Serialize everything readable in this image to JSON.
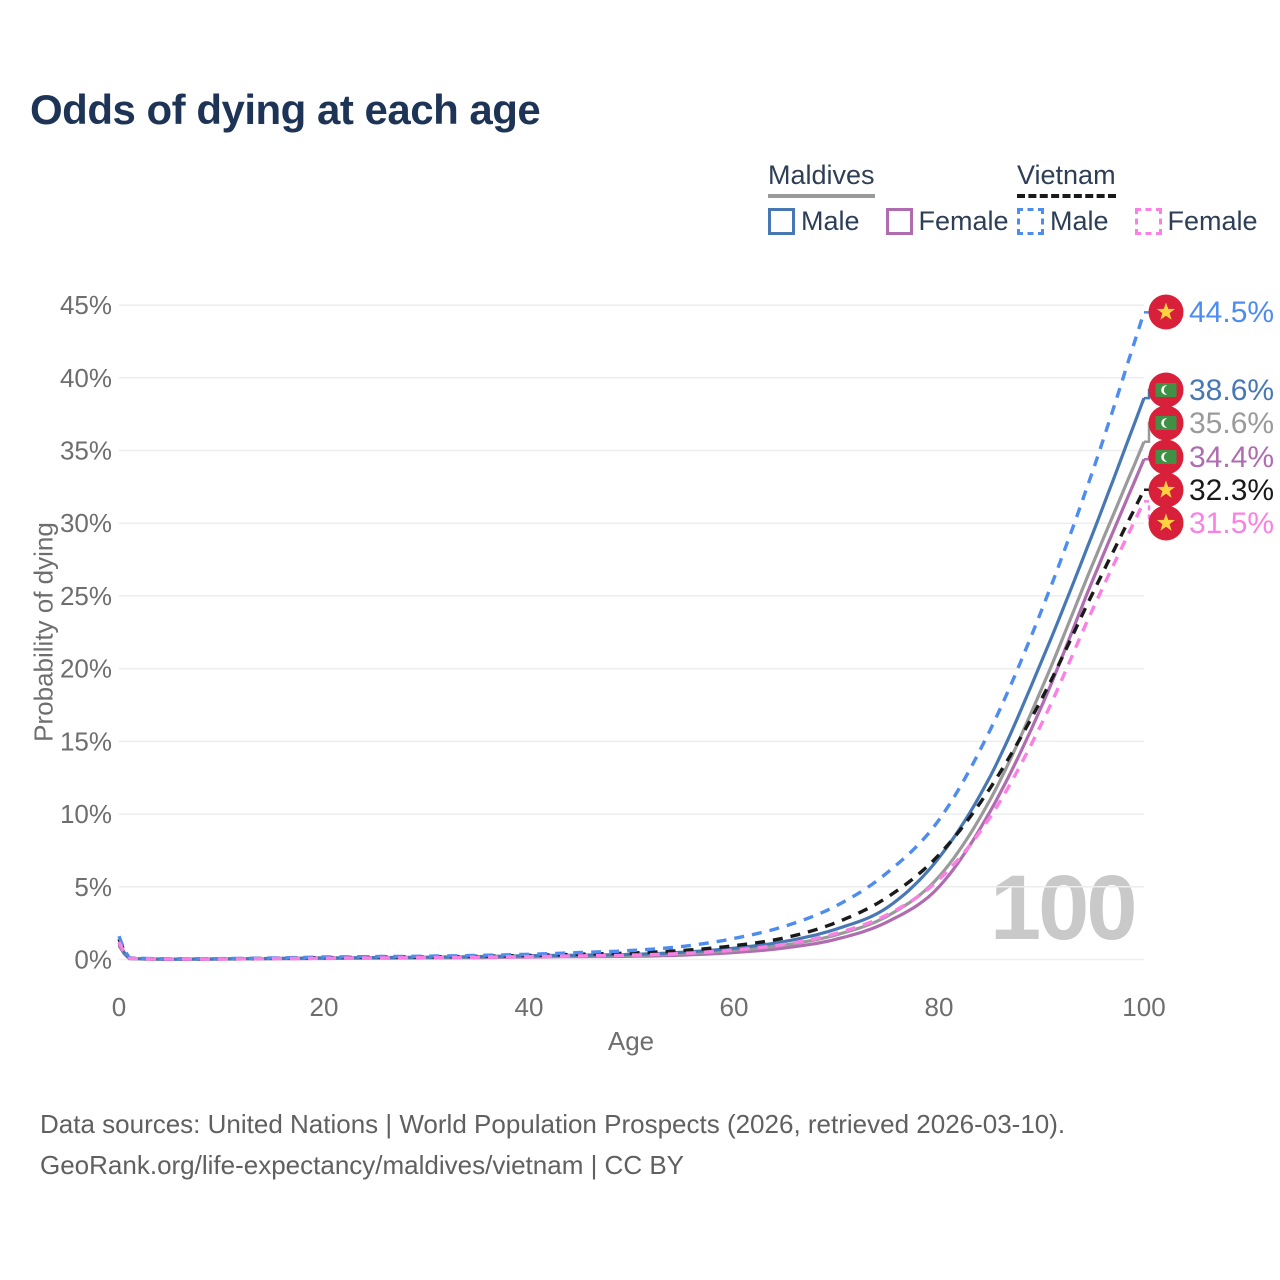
{
  "header": {
    "title": "Odds of dying at each age"
  },
  "legend": {
    "groups": [
      {
        "country": "Maldives",
        "line_style": "solid",
        "underline_color": "#9a9a9a",
        "items": [
          {
            "label": "Male",
            "color": "#4878b4",
            "style": "solid"
          },
          {
            "label": "Female",
            "color": "#af6cb0",
            "style": "solid"
          }
        ]
      },
      {
        "country": "Vietnam",
        "line_style": "dashed",
        "underline_color": "#1a1a1a",
        "items": [
          {
            "label": "Male",
            "color": "#4e8cf0",
            "style": "dashed"
          },
          {
            "label": "Female",
            "color": "#fb80e3",
            "style": "dashed"
          }
        ]
      }
    ]
  },
  "chart_data": {
    "type": "line",
    "title": "Odds of dying at each age",
    "xlabel": "Age",
    "ylabel": "Probability of dying",
    "xlim": [
      0,
      100
    ],
    "ylim": [
      0,
      45
    ],
    "grid": "horizontal",
    "watermark": "100",
    "xticks": [
      "0",
      "20",
      "40",
      "60",
      "80",
      "100"
    ],
    "xtick_values": [
      0,
      20,
      40,
      60,
      80,
      100
    ],
    "yticks": [
      "0%",
      "5%",
      "10%",
      "15%",
      "20%",
      "25%",
      "30%",
      "35%",
      "40%",
      "45%"
    ],
    "ytick_values": [
      0,
      5,
      10,
      15,
      20,
      25,
      30,
      35,
      40,
      45
    ],
    "x": [
      0,
      1,
      5,
      10,
      15,
      20,
      25,
      30,
      35,
      40,
      45,
      50,
      55,
      60,
      65,
      70,
      75,
      80,
      85,
      90,
      95,
      100
    ],
    "series": [
      {
        "name": "Vietnam Male",
        "country": "vietnam",
        "sex": "male",
        "style": "dashed",
        "color": "#4e8cf0",
        "end_label": "44.5%",
        "values": [
          1.6,
          0.12,
          0.05,
          0.06,
          0.1,
          0.17,
          0.2,
          0.23,
          0.28,
          0.36,
          0.48,
          0.62,
          0.9,
          1.45,
          2.3,
          3.7,
          6.0,
          9.6,
          15.8,
          24.0,
          33.6,
          44.5
        ]
      },
      {
        "name": "Maldives Male",
        "country": "maldives",
        "sex": "male",
        "style": "solid",
        "color": "#4878b4",
        "end_label": "38.6%",
        "values": [
          1.15,
          0.08,
          0.03,
          0.04,
          0.07,
          0.11,
          0.13,
          0.16,
          0.2,
          0.26,
          0.3,
          0.35,
          0.5,
          0.78,
          1.25,
          2.1,
          3.6,
          7.0,
          12.6,
          20.5,
          29.3,
          38.6
        ]
      },
      {
        "name": "Maldives",
        "country": "maldives",
        "sex": "both",
        "style": "solid",
        "color": "#9a9a9a",
        "end_label": "35.6%",
        "values": [
          1.05,
          0.07,
          0.03,
          0.035,
          0.06,
          0.09,
          0.11,
          0.13,
          0.16,
          0.21,
          0.25,
          0.28,
          0.4,
          0.62,
          1.0,
          1.7,
          3.0,
          5.7,
          11.0,
          18.6,
          27.2,
          35.6
        ]
      },
      {
        "name": "Maldives Female",
        "country": "maldives",
        "sex": "female",
        "style": "solid",
        "color": "#af6cb0",
        "end_label": "34.4%",
        "values": [
          0.95,
          0.06,
          0.025,
          0.03,
          0.05,
          0.07,
          0.09,
          0.11,
          0.13,
          0.17,
          0.2,
          0.22,
          0.3,
          0.48,
          0.8,
          1.4,
          2.6,
          5.0,
          10.2,
          17.4,
          26.1,
          34.4
        ]
      },
      {
        "name": "Vietnam",
        "country": "vietnam",
        "sex": "both",
        "style": "dashed",
        "color": "#1a1a1a",
        "end_label": "32.3%",
        "values": [
          1.4,
          0.1,
          0.04,
          0.05,
          0.08,
          0.13,
          0.16,
          0.18,
          0.22,
          0.28,
          0.36,
          0.45,
          0.62,
          0.95,
          1.5,
          2.55,
          4.3,
          7.2,
          11.8,
          17.9,
          25.2,
          32.3
        ]
      },
      {
        "name": "Vietnam Female",
        "country": "vietnam",
        "sex": "female",
        "style": "dashed",
        "color": "#fb80e3",
        "end_label": "31.5%",
        "values": [
          1.2,
          0.09,
          0.035,
          0.04,
          0.06,
          0.09,
          0.11,
          0.13,
          0.16,
          0.2,
          0.25,
          0.3,
          0.42,
          0.65,
          1.05,
          1.8,
          3.1,
          5.5,
          9.8,
          16.2,
          24.1,
          31.5
        ]
      }
    ],
    "flag_colors": {
      "badge_red": "#d9203b",
      "vietnam_star": "#ffd23f",
      "maldives_green": "#3f9145",
      "maldives_crescent": "#ffffff"
    }
  },
  "footer": {
    "line1": "Data sources: United Nations | World Population Prospects (2026, retrieved 2026-03-10).",
    "line2": "GeoRank.org/life-expectancy/maldives/vietnam | CC BY"
  }
}
